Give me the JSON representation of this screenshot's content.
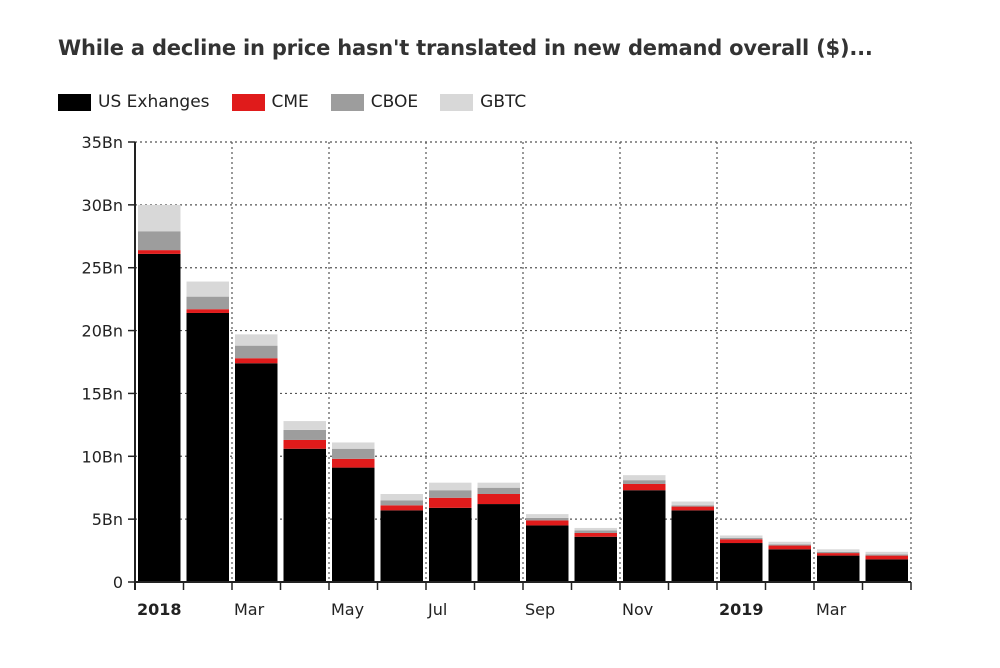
{
  "chart_data": {
    "type": "bar",
    "stacked": true,
    "title": "While a decline in price hasn't translated in new demand overall ($)...",
    "ylim": [
      0,
      35
    ],
    "grid": true,
    "legend_position": "top-left",
    "y_ticks": [
      {
        "value": 0,
        "label": "0"
      },
      {
        "value": 5,
        "label": "5Bn"
      },
      {
        "value": 10,
        "label": "10Bn"
      },
      {
        "value": 15,
        "label": "15Bn"
      },
      {
        "value": 20,
        "label": "20Bn"
      },
      {
        "value": 25,
        "label": "25Bn"
      },
      {
        "value": 30,
        "label": "30Bn"
      },
      {
        "value": 35,
        "label": "35Bn"
      }
    ],
    "categories": [
      "Jan 2018",
      "Feb 2018",
      "Mar 2018",
      "Apr 2018",
      "May 2018",
      "Jun 2018",
      "Jul 2018",
      "Aug 2018",
      "Sep 2018",
      "Oct 2018",
      "Nov 2018",
      "Dec 2018",
      "Jan 2019",
      "Feb 2019",
      "Mar 2019",
      "Apr 2019"
    ],
    "x_tick_labels": [
      {
        "index": 0,
        "label": "2018",
        "bold": true
      },
      {
        "index": 2,
        "label": "Mar",
        "bold": false
      },
      {
        "index": 4,
        "label": "May",
        "bold": false
      },
      {
        "index": 6,
        "label": "Jul",
        "bold": false
      },
      {
        "index": 8,
        "label": "Sep",
        "bold": false
      },
      {
        "index": 10,
        "label": "Nov",
        "bold": false
      },
      {
        "index": 12,
        "label": "2019",
        "bold": true
      },
      {
        "index": 14,
        "label": "Mar",
        "bold": false
      }
    ],
    "series": [
      {
        "name": "US Exhanges",
        "color": "#000000",
        "values": [
          26.1,
          21.4,
          17.4,
          10.6,
          9.1,
          5.7,
          5.9,
          6.2,
          4.5,
          3.6,
          7.3,
          5.7,
          3.1,
          2.6,
          2.1,
          1.8
        ]
      },
      {
        "name": "CME",
        "color": "#e01b1b",
        "values": [
          0.3,
          0.3,
          0.4,
          0.7,
          0.7,
          0.4,
          0.8,
          0.8,
          0.4,
          0.3,
          0.5,
          0.3,
          0.3,
          0.3,
          0.2,
          0.3
        ]
      },
      {
        "name": "CBOE",
        "color": "#9d9d9d",
        "values": [
          1.5,
          1.0,
          1.0,
          0.8,
          0.8,
          0.4,
          0.6,
          0.5,
          0.2,
          0.2,
          0.3,
          0.1,
          0.1,
          0.1,
          0.1,
          0.1
        ]
      },
      {
        "name": "GBTC",
        "color": "#d8d8d8",
        "values": [
          2.1,
          1.2,
          0.9,
          0.7,
          0.5,
          0.5,
          0.6,
          0.4,
          0.3,
          0.2,
          0.4,
          0.3,
          0.2,
          0.2,
          0.2,
          0.2
        ]
      }
    ]
  }
}
